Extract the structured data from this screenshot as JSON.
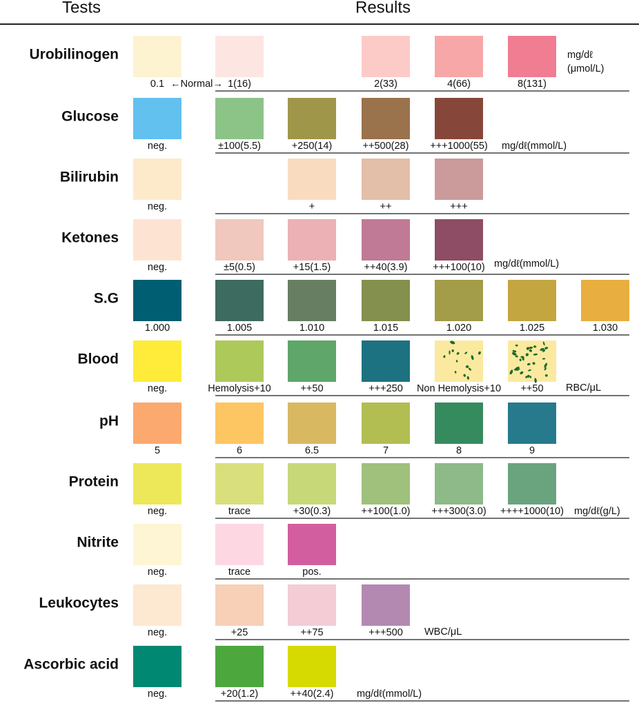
{
  "header": {
    "tests": "Tests",
    "results": "Results"
  },
  "rows": [
    {
      "name": "Urobilinogen",
      "note": "←Normal→",
      "units": [
        "mg/dℓ",
        "(μmol/L)"
      ],
      "swatches": [
        {
          "color": "#fdf3d1",
          "label": "0.1"
        },
        {
          "color": "#fde6e1",
          "label": "1(16)"
        },
        null,
        {
          "color": "#fccbc8",
          "label": "2(33)"
        },
        {
          "color": "#f7a7a8",
          "label": "4(66)"
        },
        {
          "color": "#f07d92",
          "label": "8(131)"
        }
      ]
    },
    {
      "name": "Glucose",
      "units": [
        "mg/dℓ(mmol/L)"
      ],
      "swatches": [
        {
          "color": "#62c1ef",
          "label": "neg."
        },
        {
          "color": "#8cc488",
          "label": "±100(5.5)"
        },
        {
          "color": "#a09649",
          "label": "+250(14)"
        },
        {
          "color": "#9a724b",
          "label": "++500(28)"
        },
        {
          "color": "#87463a",
          "label": "+++1000(55)"
        }
      ]
    },
    {
      "name": "Bilirubin",
      "swatches": [
        {
          "color": "#fdeacb",
          "label": "neg."
        },
        null,
        {
          "color": "#f9dcc0",
          "label": "+"
        },
        {
          "color": "#e3bea8",
          "label": "++"
        },
        {
          "color": "#cb9a9a",
          "label": "+++"
        }
      ]
    },
    {
      "name": "Ketones",
      "units": [
        "mg/dℓ(mmol/L)"
      ],
      "swatches": [
        {
          "color": "#fde4d2",
          "label": "neg."
        },
        {
          "color": "#f0c8bd",
          "label": "±5(0.5)"
        },
        {
          "color": "#ecb1b5",
          "label": "+15(1.5)"
        },
        {
          "color": "#c07a95",
          "label": "++40(3.9)"
        },
        {
          "color": "#8f4c65",
          "label": "+++100(10)"
        }
      ]
    },
    {
      "name": "S.G",
      "swatches": [
        {
          "color": "#005e72",
          "label": "1.000"
        },
        {
          "color": "#3d6b60",
          "label": "1.005"
        },
        {
          "color": "#677e63",
          "label": "1.010"
        },
        {
          "color": "#83904e",
          "label": "1.015"
        },
        {
          "color": "#a39c48",
          "label": "1.020"
        },
        {
          "color": "#c4a640",
          "label": "1.025"
        },
        {
          "color": "#e8ae40",
          "label": "1.030"
        }
      ]
    },
    {
      "name": "Blood",
      "units": [
        "RBC/μL"
      ],
      "swatches": [
        {
          "color": "#feeb3a",
          "label": "neg."
        },
        {
          "color": "#adc95a",
          "label": "Hemolysis+10"
        },
        {
          "color": "#5ea66a",
          "label": "++50"
        },
        {
          "color": "#1d7281",
          "label": "+++250"
        },
        {
          "color": "#fbe9a0",
          "label": "Non Hemolysis+10",
          "pattern": "sparse-dots"
        },
        {
          "color": "#fbe9a0",
          "label": "++50",
          "pattern": "dense-dots"
        }
      ]
    },
    {
      "name": "pH",
      "swatches": [
        {
          "color": "#fba96f",
          "label": "5"
        },
        {
          "color": "#fdc663",
          "label": "6"
        },
        {
          "color": "#d9b862",
          "label": "6.5"
        },
        {
          "color": "#b2bd52",
          "label": "7"
        },
        {
          "color": "#368b5e",
          "label": "8"
        },
        {
          "color": "#267a8c",
          "label": "9"
        }
      ]
    },
    {
      "name": "Protein",
      "units": [
        "mg/dℓ(g/L)"
      ],
      "swatches": [
        {
          "color": "#ede85a",
          "label": "neg."
        },
        {
          "color": "#dadf7d",
          "label": "trace"
        },
        {
          "color": "#c7d879",
          "label": "+30(0.3)"
        },
        {
          "color": "#9fc17b",
          "label": "++100(1.0)"
        },
        {
          "color": "#8dba88",
          "label": "+++300(3.0)"
        },
        {
          "color": "#69a47f",
          "label": "++++1000(10)"
        }
      ]
    },
    {
      "name": "Nitrite",
      "swatches": [
        {
          "color": "#fdf5d4",
          "label": "neg."
        },
        {
          "color": "#fdd8e3",
          "label": "trace"
        },
        {
          "color": "#d35e9f",
          "label": "pos."
        }
      ]
    },
    {
      "name": "Leukocytes",
      "units": [
        "WBC/μL"
      ],
      "swatches": [
        {
          "color": "#fde8d2",
          "label": "neg."
        },
        {
          "color": "#f7d0b7",
          "label": "+25"
        },
        {
          "color": "#f3ccd6",
          "label": "++75"
        },
        {
          "color": "#b389b1",
          "label": "+++500"
        }
      ]
    },
    {
      "name": "Ascorbic acid",
      "units": [
        "mg/dℓ(mmol/L)"
      ],
      "swatches": [
        {
          "color": "#008873",
          "label": "neg."
        },
        {
          "color": "#4ca83d",
          "label": "+20(1.2)"
        },
        {
          "color": "#d6da00",
          "label": "++40(2.4)"
        }
      ]
    }
  ]
}
